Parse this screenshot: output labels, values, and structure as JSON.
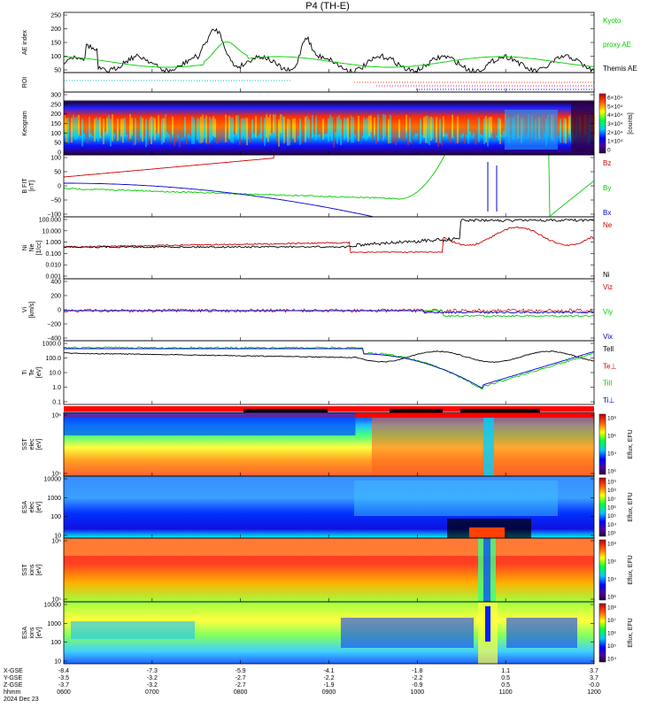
{
  "title": "P4 (TH-E)",
  "footer": {
    "row_labels": [
      "X-GSE",
      "Y-GSE",
      "Z-GSE",
      "hhmm",
      "2024 Dec 23"
    ],
    "rows": [
      {
        "label": "X-GSE",
        "values": [
          "-8.4",
          "-7.3",
          "-5.9",
          "-4.1",
          "-1.8",
          "1.1",
          "3.7"
        ]
      },
      {
        "label": "Y-GSE",
        "values": [
          "-3.5",
          "-3.2",
          "-2.7",
          "-2.2",
          "-2.2",
          "0.5",
          "3.7"
        ]
      },
      {
        "label": "Z-GSE",
        "values": [
          "-3.7",
          "-3.2",
          "-2.7",
          "-1.9",
          "-0.9",
          "0.5",
          "-0.0"
        ]
      },
      {
        "label": "hhmm",
        "values": [
          "0600",
          "0700",
          "0800",
          "0900",
          "1000",
          "1100",
          "1200"
        ]
      }
    ]
  },
  "chart_data": [
    {
      "type": "line",
      "id": "ae",
      "ylabel": "AE index",
      "ylim": [
        0,
        250
      ],
      "yticks": [
        "250",
        "200",
        "150",
        "100",
        "50"
      ],
      "series": [
        {
          "name": "Kyoto",
          "color": "#00cc00"
        },
        {
          "name": "proxy AE",
          "color": "#00cc00"
        },
        {
          "name": "Themis AE",
          "color": "#000000"
        }
      ]
    },
    {
      "type": "line",
      "id": "roi",
      "ylabel": "ROI"
    },
    {
      "type": "heatmap",
      "id": "keogram",
      "ylabel": "Keogram",
      "ylim": [
        0,
        300
      ],
      "yticks": [
        "300",
        "250",
        "200",
        "150",
        "100",
        "50",
        "0"
      ],
      "colorbar": {
        "label": "[counts]",
        "ticks": [
          "6×10⁴",
          "5×10⁴",
          "4×10⁴",
          "3×10⁴",
          "2×10⁴",
          "1×10⁴",
          "0"
        ]
      }
    },
    {
      "type": "line",
      "id": "bfield",
      "ylabel": "B FIT",
      "units": "[nT]",
      "coord": "GSE",
      "ylim": [
        -100,
        100
      ],
      "yticks": [
        "100",
        "50",
        "0",
        "−50",
        "−100"
      ],
      "series": [
        {
          "name": "Bz",
          "color": "#cc0000"
        },
        {
          "name": "By",
          "color": "#00cc00"
        },
        {
          "name": "Bx",
          "color": "#0000cc"
        }
      ]
    },
    {
      "type": "line",
      "id": "density",
      "ylabel": "Ni",
      "units": "[1/cc]",
      "sub": "Ne",
      "scale": "log",
      "yticks": [
        "100.000",
        "10.000",
        "1.000",
        "0.100",
        "0.010",
        "0.001"
      ],
      "series": [
        {
          "name": "Ne",
          "color": "#cc0000"
        },
        {
          "name": "Ni",
          "color": "#000000"
        }
      ]
    },
    {
      "type": "line",
      "id": "velocity",
      "ylabel": "Vi",
      "units": "[km/s]",
      "ylim": [
        -500,
        400
      ],
      "yticks": [
        "400",
        "200",
        "0",
        "−200",
        "−400"
      ],
      "series": [
        {
          "name": "Viz",
          "color": "#cc0000"
        },
        {
          "name": "Viy",
          "color": "#00cc00"
        },
        {
          "name": "Vix",
          "color": "#0000cc"
        }
      ]
    },
    {
      "type": "line",
      "id": "temperature",
      "ylabel": "Ti",
      "units": "[eV]",
      "sub": "Te",
      "scale": "log",
      "yticks": [
        "1000.0",
        "100.0",
        "10.0",
        "1.0",
        "0.1"
      ],
      "series": [
        {
          "name": "Tell",
          "color": "#000000"
        },
        {
          "name": "Te⊥",
          "color": "#cc0000"
        },
        {
          "name": "TiII",
          "color": "#00cc00"
        },
        {
          "name": "Ti⊥",
          "color": "#0000cc"
        }
      ]
    },
    {
      "type": "heatmap",
      "id": "sst_e",
      "ylabel": "SST",
      "sub": "elec",
      "units": "[eV]",
      "scale": "log",
      "yticks": [
        "10⁶",
        "10⁵"
      ],
      "colorbar": {
        "label": "Eflux, EFU",
        "ticks": [
          "10⁸",
          "10⁶",
          "10⁴",
          "10⁶"
        ]
      }
    },
    {
      "type": "heatmap",
      "id": "esa_e",
      "ylabel": "ESA",
      "sub": "elec",
      "units": "[eV]",
      "scale": "log",
      "yticks": [
        "10000",
        "1000",
        "100",
        "10"
      ],
      "colorbar": {
        "label": "Eflux, EFU",
        "ticks": [
          "10⁹",
          "10⁸",
          "10⁷",
          "10⁶",
          "10⁵",
          "10⁴",
          "10³"
        ]
      }
    },
    {
      "type": "heatmap",
      "id": "sst_i",
      "ylabel": "SST",
      "sub": "ions",
      "units": "[eV]",
      "scale": "log",
      "yticks": [
        "10⁶",
        "10⁵"
      ],
      "colorbar": {
        "label": "Eflux, EFU",
        "ticks": [
          "10⁸",
          "10⁶",
          "10⁴",
          "10⁶"
        ]
      }
    },
    {
      "type": "heatmap",
      "id": "esa_i",
      "ylabel": "ESA",
      "sub": "ions",
      "units": "[eV]",
      "scale": "log",
      "yticks": [
        "10000",
        "1000",
        "100",
        "10"
      ],
      "colorbar": {
        "label": "Eflux, EFU",
        "ticks": [
          "10⁸",
          "10⁷",
          "10⁶",
          "10⁵",
          "10⁴"
        ]
      }
    }
  ]
}
